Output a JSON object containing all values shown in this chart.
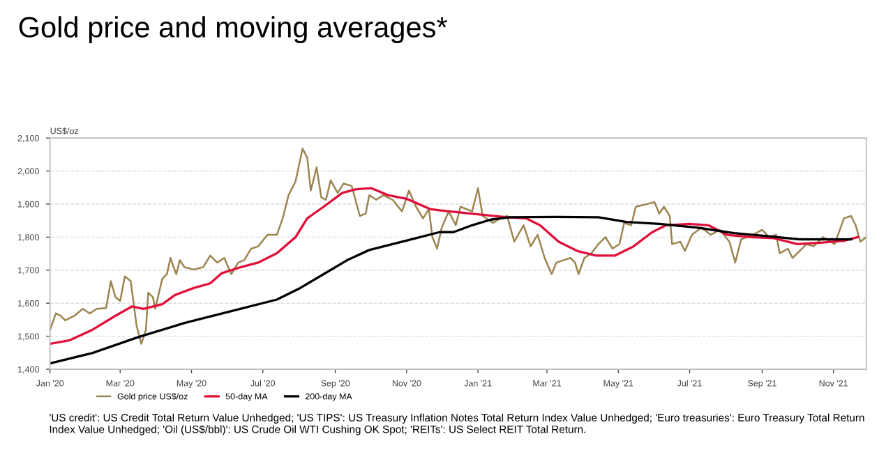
{
  "chart_data": {
    "type": "line",
    "title": "Gold price and moving averages*",
    "ylabel": "US$/oz",
    "annotations": [
      "'US credit': US Credit Total Return Value Unhedged; 'US TIPS': US Treasury Inflation Notes Total Return Index Value Unhedged; 'Euro treasuries': Euro Treasury Total Return Index Value Unhedged; 'Oil (US$/bbl)': US Crude Oil WTI Cushing OK Spot; 'REITs': US Select REIT Total Return."
    ],
    "xlim": [
      "2020-01-01",
      "2021-11-29"
    ],
    "xticks": [
      {
        "value": "2020-01-01",
        "label": "Jan '20"
      },
      {
        "value": "2020-03-01",
        "label": "Mar '20"
      },
      {
        "value": "2020-05-01",
        "label": "May '20"
      },
      {
        "value": "2020-07-01",
        "label": "Jul '20"
      },
      {
        "value": "2020-09-01",
        "label": "Sep '20"
      },
      {
        "value": "2020-11-01",
        "label": "Nov '20"
      },
      {
        "value": "2021-01-01",
        "label": "Jan '21"
      },
      {
        "value": "2021-03-01",
        "label": "Mar '21"
      },
      {
        "value": "2021-05-01",
        "label": "May '21"
      },
      {
        "value": "2021-07-01",
        "label": "Jul '21"
      },
      {
        "value": "2021-09-01",
        "label": "Sep '21"
      },
      {
        "value": "2021-11-01",
        "label": "Nov '21"
      }
    ],
    "ylim": [
      1400,
      2100
    ],
    "yticks": [
      {
        "value": 1400,
        "label": "1,400"
      },
      {
        "value": 1500,
        "label": "1,500"
      },
      {
        "value": 1600,
        "label": "1,600"
      },
      {
        "value": 1700,
        "label": "1,700"
      },
      {
        "value": 1800,
        "label": "1,800"
      },
      {
        "value": 1900,
        "label": "1,900"
      },
      {
        "value": 2000,
        "label": "2,000"
      },
      {
        "value": 2100,
        "label": "2,100"
      }
    ],
    "grid": "y",
    "legend": "bottom left",
    "marker": "none",
    "line_style": "solid",
    "series": [
      {
        "name": "Gold price US$/oz",
        "color": "#9c8450",
        "x": [
          "2020-01-01",
          "2020-01-06",
          "2020-01-10",
          "2020-01-14",
          "2020-01-22",
          "2020-01-29",
          "2020-02-04",
          "2020-02-10",
          "2020-02-18",
          "2020-02-22",
          "2020-02-26",
          "2020-03-01",
          "2020-03-05",
          "2020-03-10",
          "2020-03-15",
          "2020-03-19",
          "2020-03-23",
          "2020-03-25",
          "2020-03-29",
          "2020-03-31",
          "2020-04-06",
          "2020-04-10",
          "2020-04-13",
          "2020-04-15",
          "2020-04-18",
          "2020-04-21",
          "2020-04-25",
          "2020-05-03",
          "2020-05-11",
          "2020-05-17",
          "2020-05-23",
          "2020-05-29",
          "2020-06-04",
          "2020-06-10",
          "2020-06-15",
          "2020-06-21",
          "2020-06-27",
          "2020-07-05",
          "2020-07-13",
          "2020-07-18",
          "2020-07-23",
          "2020-07-29",
          "2020-08-04",
          "2020-08-08",
          "2020-08-11",
          "2020-08-16",
          "2020-08-20",
          "2020-08-24",
          "2020-08-28",
          "2020-09-03",
          "2020-09-08",
          "2020-09-15",
          "2020-09-22",
          "2020-09-27",
          "2020-09-30",
          "2020-10-06",
          "2020-10-12",
          "2020-10-20",
          "2020-10-28",
          "2020-11-03",
          "2020-11-09",
          "2020-11-15",
          "2020-11-20",
          "2020-11-23",
          "2020-11-27",
          "2020-12-01",
          "2020-12-07",
          "2020-12-13",
          "2020-12-17",
          "2020-12-27",
          "2021-01-01",
          "2021-01-05",
          "2021-01-14",
          "2021-01-20",
          "2021-01-26",
          "2021-02-01",
          "2021-02-09",
          "2021-02-15",
          "2021-02-21",
          "2021-02-27",
          "2021-03-05",
          "2021-03-09",
          "2021-03-15",
          "2021-03-21",
          "2021-03-25",
          "2021-03-28",
          "2021-04-02",
          "2021-04-08",
          "2021-04-14",
          "2021-04-20",
          "2021-04-26",
          "2021-05-02",
          "2021-05-06",
          "2021-05-12",
          "2021-05-16",
          "2021-05-24",
          "2021-06-01",
          "2021-06-05",
          "2021-06-09",
          "2021-06-14",
          "2021-06-16",
          "2021-06-23",
          "2021-06-27",
          "2021-07-03",
          "2021-07-11",
          "2021-07-19",
          "2021-07-27",
          "2021-08-04",
          "2021-08-09",
          "2021-08-14",
          "2021-08-24",
          "2021-09-01",
          "2021-09-07",
          "2021-09-13",
          "2021-09-16",
          "2021-09-23",
          "2021-09-27",
          "2021-10-03",
          "2021-10-09",
          "2021-10-15",
          "2021-10-23",
          "2021-11-02",
          "2021-11-10",
          "2021-11-16",
          "2021-11-20",
          "2021-11-24",
          "2021-11-29"
        ],
        "values": [
          1519,
          1569,
          1562,
          1548,
          1562,
          1583,
          1569,
          1583,
          1585,
          1667,
          1618,
          1607,
          1681,
          1667,
          1533,
          1477,
          1519,
          1632,
          1618,
          1583,
          1674,
          1688,
          1737,
          1716,
          1688,
          1730,
          1709,
          1702,
          1709,
          1744,
          1723,
          1737,
          1688,
          1723,
          1730,
          1765,
          1772,
          1807,
          1807,
          1857,
          1927,
          1969,
          2068,
          2040,
          1941,
          2011,
          1920,
          1913,
          1972,
          1934,
          1962,
          1955,
          1864,
          1871,
          1927,
          1913,
          1927,
          1913,
          1878,
          1941,
          1892,
          1857,
          1885,
          1800,
          1765,
          1829,
          1878,
          1836,
          1892,
          1878,
          1948,
          1864,
          1843,
          1857,
          1864,
          1786,
          1836,
          1772,
          1807,
          1737,
          1688,
          1723,
          1730,
          1737,
          1723,
          1688,
          1737,
          1751,
          1779,
          1800,
          1765,
          1779,
          1843,
          1836,
          1892,
          1899,
          1906,
          1871,
          1892,
          1864,
          1779,
          1786,
          1758,
          1807,
          1829,
          1807,
          1822,
          1786,
          1723,
          1793,
          1807,
          1822,
          1800,
          1807,
          1751,
          1765,
          1737,
          1758,
          1779,
          1772,
          1800,
          1779,
          1857,
          1864,
          1836,
          1786,
          1800
        ]
      },
      {
        "name": "50-day MA",
        "color": "#e0103a",
        "x": [
          "2020-01-01",
          "2020-01-18",
          "2020-02-06",
          "2020-02-26",
          "2020-03-11",
          "2020-03-21",
          "2020-04-06",
          "2020-04-17",
          "2020-05-03",
          "2020-05-17",
          "2020-05-27",
          "2020-06-12",
          "2020-06-27",
          "2020-07-13",
          "2020-07-29",
          "2020-08-08",
          "2020-08-22",
          "2020-09-07",
          "2020-09-19",
          "2020-10-02",
          "2020-10-16",
          "2020-11-01",
          "2020-11-21",
          "2020-11-29",
          "2020-12-26",
          "2021-01-26",
          "2021-02-11",
          "2021-02-23",
          "2021-03-11",
          "2021-03-27",
          "2021-04-12",
          "2021-04-28",
          "2021-05-14",
          "2021-05-30",
          "2021-06-11",
          "2021-07-01",
          "2021-07-17",
          "2021-08-02",
          "2021-08-22",
          "2021-09-11",
          "2021-10-01",
          "2021-10-21",
          "2021-11-10",
          "2021-11-22"
        ],
        "values": [
          1477,
          1488,
          1519,
          1562,
          1590,
          1583,
          1597,
          1625,
          1646,
          1660,
          1691,
          1709,
          1723,
          1751,
          1800,
          1857,
          1892,
          1934,
          1945,
          1948,
          1927,
          1916,
          1885,
          1881,
          1871,
          1860,
          1857,
          1836,
          1786,
          1758,
          1744,
          1744,
          1772,
          1815,
          1836,
          1840,
          1836,
          1807,
          1800,
          1797,
          1779,
          1783,
          1789,
          1800
        ]
      },
      {
        "name": "200-day MA",
        "color": "#000000",
        "x": [
          "2020-01-01",
          "2020-02-06",
          "2020-03-17",
          "2020-04-25",
          "2020-06-04",
          "2020-07-13",
          "2020-08-02",
          "2020-08-22",
          "2020-09-11",
          "2020-09-30",
          "2020-10-20",
          "2020-11-09",
          "2020-11-29",
          "2020-12-11",
          "2020-12-27",
          "2021-01-12",
          "2021-01-28",
          "2021-03-09",
          "2021-04-14",
          "2021-05-08",
          "2021-06-05",
          "2021-07-07",
          "2021-08-08",
          "2021-09-05",
          "2021-10-03",
          "2021-11-16"
        ],
        "values": [
          1418,
          1449,
          1498,
          1540,
          1576,
          1611,
          1646,
          1688,
          1730,
          1761,
          1779,
          1797,
          1815,
          1815,
          1836,
          1853,
          1860,
          1861,
          1860,
          1846,
          1840,
          1829,
          1812,
          1803,
          1793,
          1793
        ]
      }
    ]
  }
}
